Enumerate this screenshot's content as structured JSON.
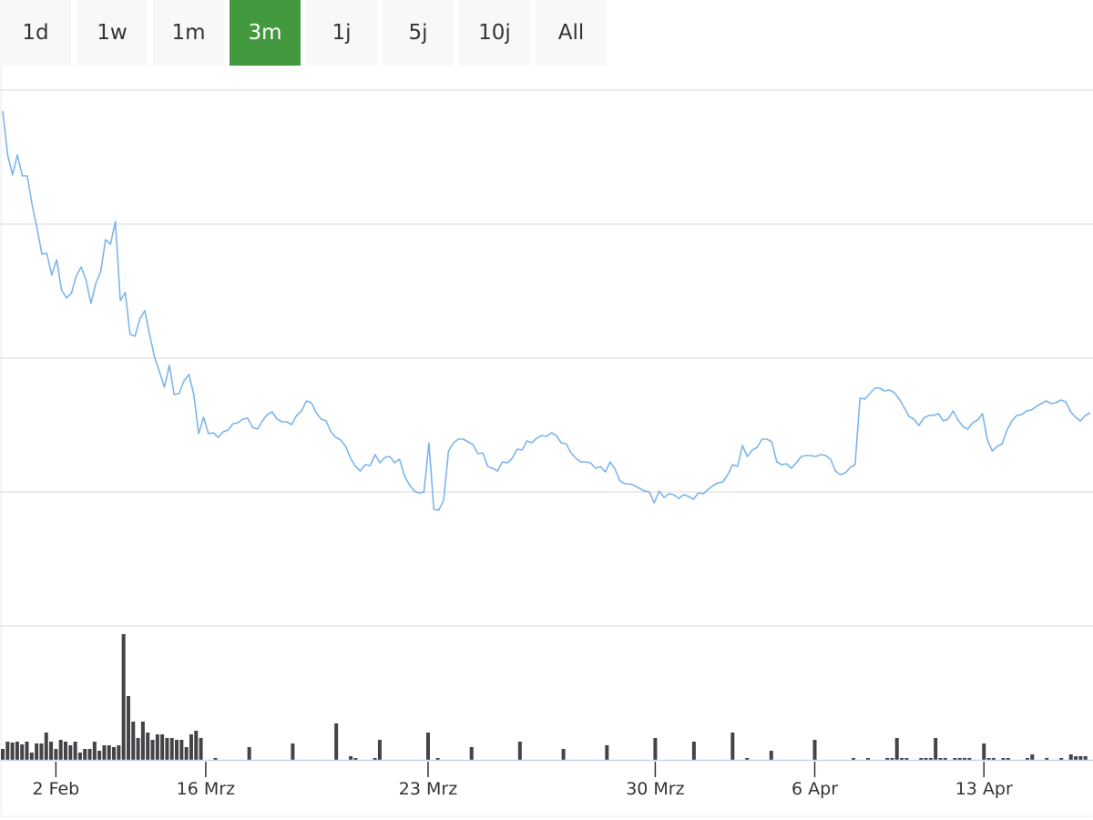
{
  "range_selector": {
    "buttons": [
      "1d",
      "1w",
      "1m",
      "3m",
      "1j",
      "5j",
      "10j",
      "All"
    ],
    "active": "3m",
    "active_color": "#43993f"
  },
  "chart_data": {
    "type": "line",
    "title": "",
    "xlabel": "",
    "ylabel": "",
    "grid": true,
    "x_unit": "trading-period index",
    "xlim": [
      0,
      225
    ],
    "price_ylim": [
      0,
      588
    ],
    "price_gridlines": [
      0,
      147,
      294,
      441,
      588
    ],
    "volume_ylim": [
      0,
      147
    ],
    "x_ticks": [
      {
        "index": 11,
        "label": "2 Feb"
      },
      {
        "index": 42,
        "label": "16 Mrz"
      },
      {
        "index": 88,
        "label": "23 Mrz"
      },
      {
        "index": 135,
        "label": "30 Mrz"
      },
      {
        "index": 168,
        "label": "6 Apr"
      },
      {
        "index": 203,
        "label": "13 Apr"
      }
    ],
    "series": [
      {
        "name": "price",
        "type": "line",
        "color": "#7cb5ec",
        "values": [
          565,
          517,
          495,
          517,
          494,
          494,
          462,
          437,
          408,
          409,
          385,
          402,
          369,
          360,
          365,
          384,
          394,
          380,
          354,
          376,
          389,
          424,
          419,
          444,
          357,
          366,
          320,
          318,
          337,
          346,
          319,
          295,
          279,
          262,
          286,
          254,
          255,
          269,
          276,
          254,
          211,
          229,
          211,
          212,
          207,
          213,
          215,
          222,
          223,
          227,
          228,
          218,
          216,
          225,
          232,
          235,
          227,
          224,
          224,
          221,
          231,
          236,
          247,
          245,
          234,
          227,
          225,
          213,
          207,
          204,
          197,
          184,
          175,
          170,
          177,
          176,
          188,
          179,
          185,
          186,
          179,
          183,
          165,
          155,
          148,
          146,
          147,
          201,
          128,
          127,
          138,
          192,
          201,
          205,
          205,
          202,
          199,
          189,
          190,
          175,
          173,
          170,
          180,
          179,
          184,
          194,
          193,
          203,
          201,
          206,
          209,
          208,
          212,
          209,
          201,
          200,
          190,
          184,
          180,
          180,
          179,
          173,
          175,
          169,
          180,
          172,
          159,
          156,
          156,
          154,
          151,
          148,
          147,
          135,
          148,
          141,
          145,
          144,
          140,
          144,
          142,
          139,
          146,
          145,
          150,
          154,
          157,
          158,
          166,
          177,
          175,
          198,
          186,
          193,
          196,
          205,
          205,
          202,
          180,
          177,
          178,
          173,
          179,
          186,
          187,
          187,
          186,
          188,
          187,
          183,
          170,
          166,
          168,
          174,
          177,
          250,
          249,
          255,
          261,
          261,
          258,
          259,
          256,
          249,
          240,
          230,
          227,
          220,
          228,
          231,
          231,
          233,
          225,
          227,
          236,
          226,
          219,
          216,
          223,
          226,
          233,
          204,
          192,
          197,
          200,
          215,
          225,
          231,
          232,
          236,
          237,
          241,
          244,
          247,
          244,
          245,
          248,
          246,
          235,
          229,
          225,
          231,
          234
        ]
      },
      {
        "name": "volume",
        "type": "column",
        "color": "#434348",
        "points": [
          [
            0,
            12
          ],
          [
            1,
            20
          ],
          [
            2,
            19
          ],
          [
            3,
            20
          ],
          [
            4,
            17
          ],
          [
            5,
            20
          ],
          [
            6,
            8
          ],
          [
            7,
            18
          ],
          [
            8,
            18
          ],
          [
            9,
            30
          ],
          [
            10,
            20
          ],
          [
            11,
            12
          ],
          [
            12,
            22
          ],
          [
            13,
            20
          ],
          [
            14,
            16
          ],
          [
            15,
            20
          ],
          [
            16,
            8
          ],
          [
            17,
            12
          ],
          [
            18,
            12
          ],
          [
            19,
            20
          ],
          [
            20,
            10
          ],
          [
            21,
            16
          ],
          [
            22,
            16
          ],
          [
            23,
            14
          ],
          [
            24,
            16
          ],
          [
            25,
            138
          ],
          [
            26,
            70
          ],
          [
            27,
            42
          ],
          [
            28,
            24
          ],
          [
            29,
            42
          ],
          [
            30,
            30
          ],
          [
            31,
            22
          ],
          [
            32,
            28
          ],
          [
            33,
            28
          ],
          [
            34,
            24
          ],
          [
            35,
            24
          ],
          [
            36,
            22
          ],
          [
            37,
            22
          ],
          [
            38,
            14
          ],
          [
            39,
            28
          ],
          [
            40,
            32
          ],
          [
            41,
            24
          ],
          [
            44,
            2
          ],
          [
            51,
            14
          ],
          [
            60,
            18
          ],
          [
            69,
            40
          ],
          [
            72,
            4
          ],
          [
            73,
            2
          ],
          [
            77,
            2
          ],
          [
            78,
            22
          ],
          [
            88,
            30
          ],
          [
            90,
            2
          ],
          [
            97,
            14
          ],
          [
            107,
            20
          ],
          [
            116,
            12
          ],
          [
            125,
            16
          ],
          [
            135,
            24
          ],
          [
            143,
            20
          ],
          [
            151,
            30
          ],
          [
            154,
            2
          ],
          [
            159,
            10
          ],
          [
            168,
            22
          ],
          [
            176,
            2
          ],
          [
            179,
            2
          ],
          [
            183,
            2
          ],
          [
            184,
            2
          ],
          [
            185,
            24
          ],
          [
            186,
            2
          ],
          [
            187,
            2
          ],
          [
            190,
            2
          ],
          [
            191,
            2
          ],
          [
            192,
            2
          ],
          [
            193,
            24
          ],
          [
            194,
            2
          ],
          [
            195,
            2
          ],
          [
            197,
            2
          ],
          [
            198,
            2
          ],
          [
            199,
            2
          ],
          [
            200,
            2
          ],
          [
            203,
            18
          ],
          [
            204,
            2
          ],
          [
            205,
            2
          ],
          [
            207,
            2
          ],
          [
            208,
            2
          ],
          [
            212,
            2
          ],
          [
            213,
            6
          ],
          [
            216,
            2
          ],
          [
            219,
            2
          ],
          [
            221,
            6
          ],
          [
            222,
            4
          ],
          [
            223,
            4
          ],
          [
            224,
            4
          ]
        ]
      }
    ]
  }
}
